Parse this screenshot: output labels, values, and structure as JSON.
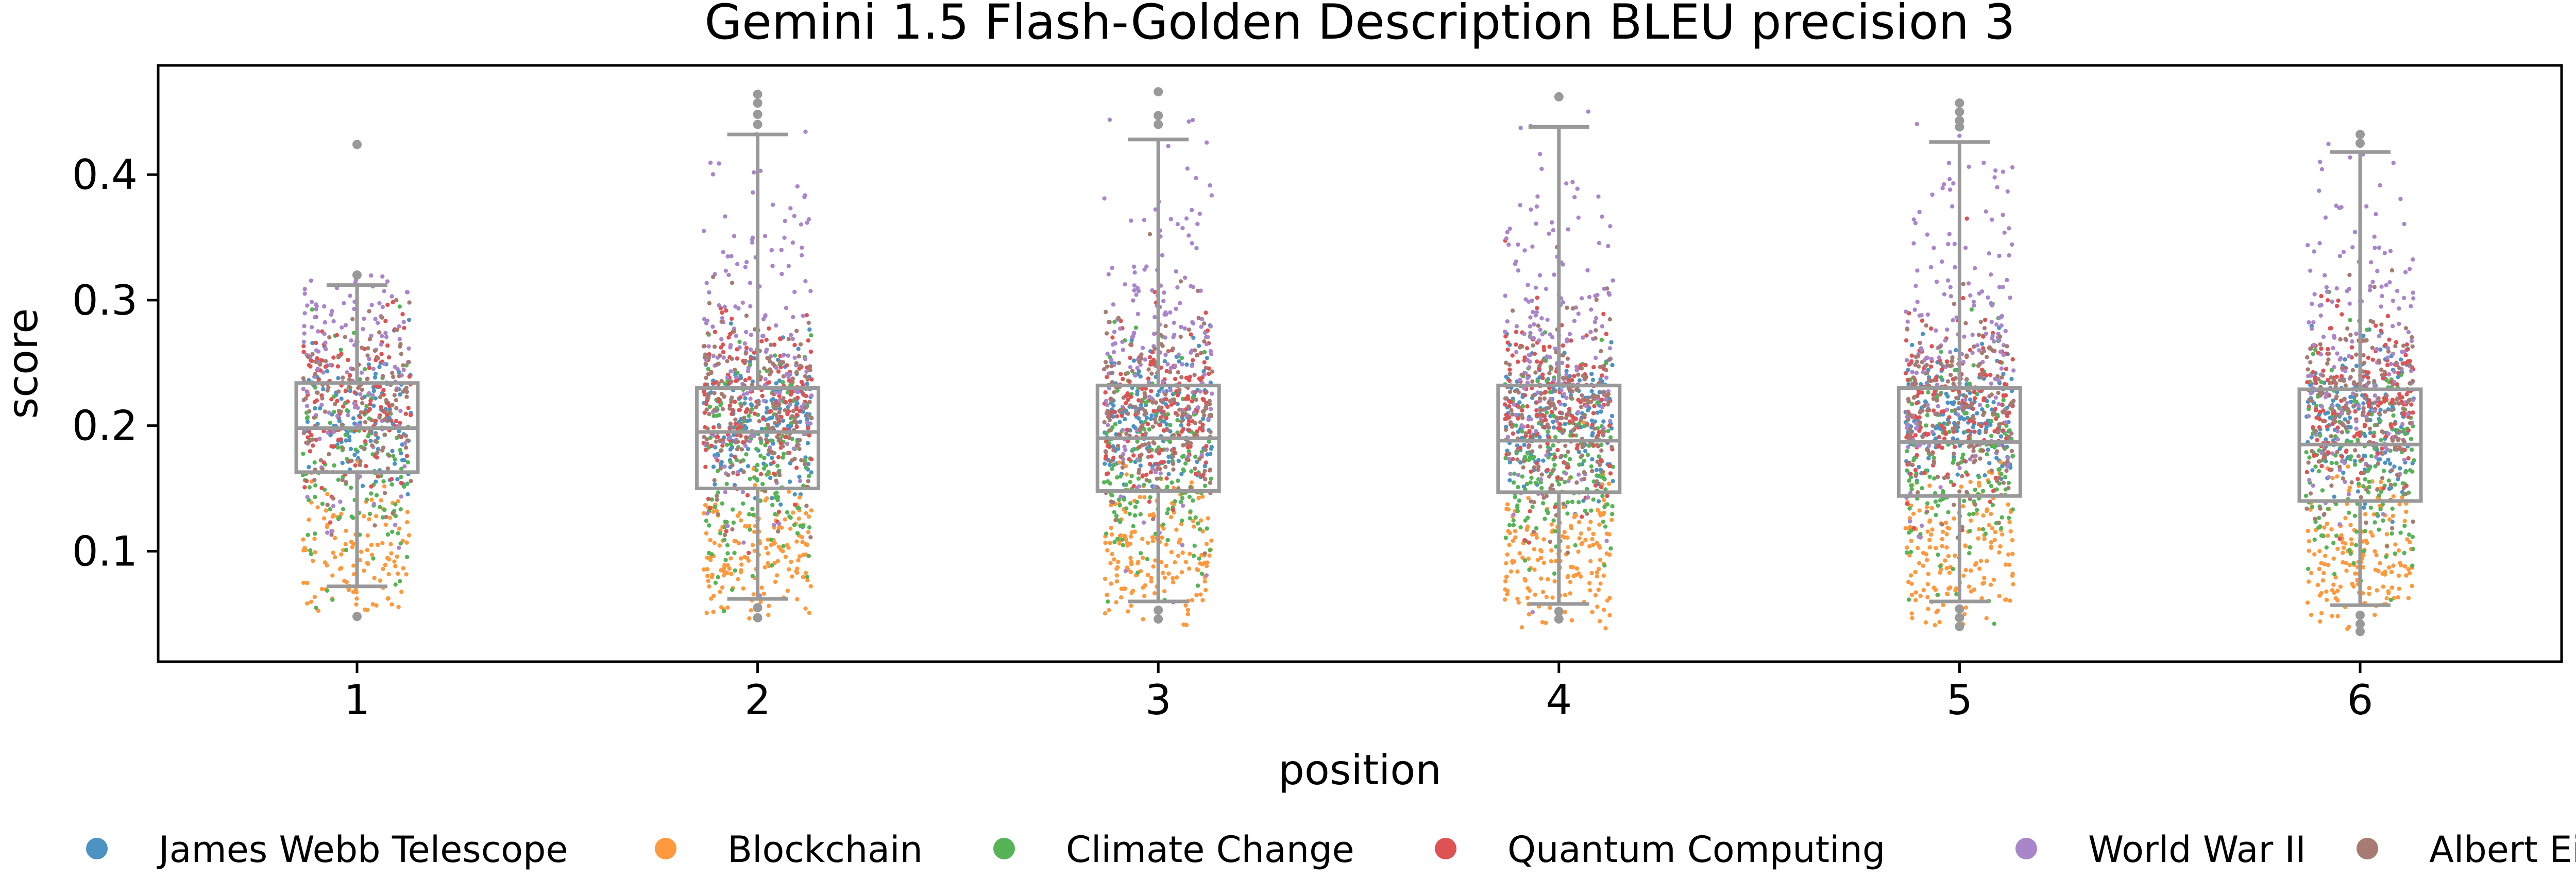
{
  "chart_data": {
    "type": "box",
    "title": "Gemini 1.5 Flash-Golden Description BLEU precision 3",
    "xlabel": "position",
    "ylabel": "score",
    "categories": [
      "1",
      "2",
      "3",
      "4",
      "5",
      "6"
    ],
    "ylim": [
      0.012,
      0.487
    ],
    "yticks": [
      0.1,
      0.2,
      0.3,
      0.4
    ],
    "ytick_labels": [
      "0.1",
      "0.2",
      "0.3",
      "0.4"
    ],
    "grid": false,
    "legend_position": "bottom",
    "boxes": [
      {
        "position": "1",
        "q1": 0.163,
        "median": 0.198,
        "q3": 0.234,
        "whisker_low": 0.072,
        "whisker_high": 0.312,
        "outliers": [
          0.32,
          0.424,
          0.048
        ]
      },
      {
        "position": "2",
        "q1": 0.15,
        "median": 0.195,
        "q3": 0.23,
        "whisker_low": 0.062,
        "whisker_high": 0.432,
        "outliers": [
          0.44,
          0.448,
          0.457,
          0.464,
          0.047,
          0.055
        ]
      },
      {
        "position": "3",
        "q1": 0.148,
        "median": 0.19,
        "q3": 0.232,
        "whisker_low": 0.06,
        "whisker_high": 0.428,
        "outliers": [
          0.44,
          0.447,
          0.466,
          0.046,
          0.053
        ]
      },
      {
        "position": "4",
        "q1": 0.147,
        "median": 0.188,
        "q3": 0.232,
        "whisker_low": 0.058,
        "whisker_high": 0.438,
        "outliers": [
          0.462,
          0.046,
          0.052
        ]
      },
      {
        "position": "5",
        "q1": 0.144,
        "median": 0.187,
        "q3": 0.23,
        "whisker_low": 0.06,
        "whisker_high": 0.426,
        "outliers": [
          0.438,
          0.443,
          0.45,
          0.457,
          0.04,
          0.047,
          0.054
        ]
      },
      {
        "position": "6",
        "q1": 0.14,
        "median": 0.185,
        "q3": 0.229,
        "whisker_low": 0.057,
        "whisker_high": 0.418,
        "outliers": [
          0.425,
          0.432,
          0.036,
          0.042,
          0.049
        ]
      }
    ],
    "series": [
      {
        "name": "James Webb Telescope",
        "color": "#4c92c3",
        "center": 0.205,
        "spread": 0.03
      },
      {
        "name": "Blockchain",
        "color": "#ff993e",
        "center": 0.095,
        "spread": 0.03
      },
      {
        "name": "Climate Change",
        "color": "#56b356",
        "center": 0.17,
        "spread": 0.045
      },
      {
        "name": "Quantum Computing",
        "color": "#de5253",
        "center": 0.215,
        "spread": 0.035
      },
      {
        "name": "World War II",
        "color": "#a985ca",
        "center": 0.27,
        "spread": 0.07
      },
      {
        "name": "Albert Einstein",
        "color": "#a77b72",
        "center": 0.21,
        "spread": 0.04
      }
    ]
  }
}
